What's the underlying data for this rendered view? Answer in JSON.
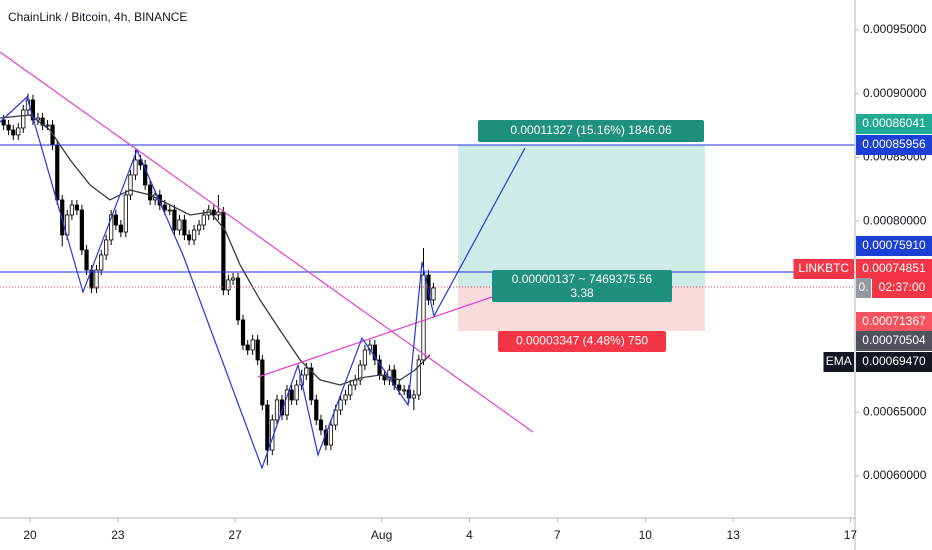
{
  "chart_data": {
    "type": "candlestick",
    "title": "ChainLink / Bitcoin, 4h, BINANCE",
    "up_color": "#ffffff",
    "down_color": "#000000",
    "x": [
      19.1,
      19.27,
      19.43,
      19.6,
      19.77,
      19.93,
      20.1,
      20.27,
      20.43,
      20.6,
      20.77,
      20.93,
      21.1,
      21.27,
      21.43,
      21.6,
      21.77,
      21.93,
      22.1,
      22.27,
      22.43,
      22.6,
      22.77,
      22.93,
      23.1,
      23.27,
      23.43,
      23.6,
      23.77,
      23.93,
      24.1,
      24.27,
      24.43,
      24.6,
      24.77,
      24.93,
      25.1,
      25.27,
      25.43,
      25.6,
      25.77,
      25.93,
      26.1,
      26.27,
      26.43,
      26.6,
      26.77,
      26.93,
      27.1,
      27.27,
      27.43,
      27.6,
      27.77,
      27.93,
      28.1,
      28.27,
      28.43,
      28.6,
      28.77,
      28.93,
      29.1,
      29.27,
      29.43,
      29.6,
      29.77,
      29.93,
      30.1,
      30.27,
      30.43,
      30.6,
      30.77,
      30.93,
      31.1,
      31.27,
      31.43,
      31.6,
      31.77,
      31.93,
      32.1,
      32.27,
      32.43,
      32.6,
      32.77,
      32.93,
      33.1,
      33.27,
      33.43,
      33.6,
      33.77
    ],
    "open": [
      0.0008794,
      0.0008754,
      0.0008715,
      0.0008676,
      0.0008731,
      0.0008872,
      0.0008951,
      0.0008794,
      0.0008809,
      0.0008754,
      0.0008754,
      0.0008597,
      0.0008166,
      0.0007891,
      0.0008048,
      0.0008126,
      0.0008087,
      0.0007773,
      0.0007616,
      0.0007475,
      0.0007616,
      0.0007734,
      0.0007852,
      0.0008048,
      0.0007969,
      0.0007914,
      0.0008205,
      0.0008362,
      0.000848,
      0.000844,
      0.0008283,
      0.0008166,
      0.0008205,
      0.0008126,
      0.0008087,
      0.0008087,
      0.000793,
      0.0008009,
      0.0007891,
      0.0007852,
      0.000793,
      0.0007969,
      0.0008048,
      0.0008087,
      0.0008048,
      0.0008071,
      0.0007459,
      0.0007538,
      0.0007553,
      0.0007224,
      0.0007027,
      0.0006988,
      0.0007067,
      0.000691,
      0.0006556,
      0.0006203,
      0.0006439,
      0.0006596,
      0.0006478,
      0.0006674,
      0.0006596,
      0.0006713,
      0.0006792,
      0.0006847,
      0.0006596,
      0.0006439,
      0.000636,
      0.0006242,
      0.0006399,
      0.0006517,
      0.0006596,
      0.0006635,
      0.0006713,
      0.0006753,
      0.000687,
      0.0006988,
      0.0007027,
      0.000691,
      0.0006792,
      0.0006753,
      0.0006831,
      0.0006713,
      0.0006674,
      0.0006674,
      0.0006611,
      0.0006635,
      0.000691,
      0.0007577,
      0.0007381
    ],
    "high": [
      0.0008834,
      0.0008794,
      0.0008755,
      0.0008771,
      0.0008912,
      0.0009,
      0.0008991,
      0.0008849,
      0.0008849,
      0.0008794,
      0.0008794,
      0.0008637,
      0.0008206,
      0.0008088,
      0.0008166,
      0.0008166,
      0.0008127,
      0.0007813,
      0.0007656,
      0.0007656,
      0.0007774,
      0.0007892,
      0.0008088,
      0.0008088,
      0.0008009,
      0.0008245,
      0.0008402,
      0.000856,
      0.000852,
      0.000848,
      0.0008323,
      0.0008245,
      0.0008245,
      0.0008166,
      0.0008127,
      0.0008127,
      0.0008049,
      0.0008049,
      0.0007931,
      0.000797,
      0.0008009,
      0.0008088,
      0.0008127,
      0.0008127,
      0.0008205,
      0.0008111,
      0.0007578,
      0.0007593,
      0.0007593,
      0.0007264,
      0.0007067,
      0.0007107,
      0.0007107,
      0.000695,
      0.0006596,
      0.0006479,
      0.0006636,
      0.0006636,
      0.0006714,
      0.0006714,
      0.0006753,
      0.0006832,
      0.0006887,
      0.0006887,
      0.0006636,
      0.0006479,
      0.00064,
      0.0006439,
      0.0006557,
      0.0006636,
      0.0006675,
      0.0006753,
      0.0006793,
      0.000691,
      0.0007028,
      0.0007067,
      0.0007067,
      0.000695,
      0.0006832,
      0.0006871,
      0.0006871,
      0.0006753,
      0.0006714,
      0.0006714,
      0.0006675,
      0.000695,
      0.0007789,
      0.0007617,
      0.0007515
    ],
    "low": [
      0.0008714,
      0.0008675,
      0.0008636,
      0.0008636,
      0.0008691,
      0.0008832,
      0.0008754,
      0.0008754,
      0.0008714,
      0.0008714,
      0.0008557,
      0.0008126,
      0.00078,
      0.0007851,
      0.0008008,
      0.0008047,
      0.0007733,
      0.0007576,
      0.0007435,
      0.0007435,
      0.0007576,
      0.0007694,
      0.0007812,
      0.0007929,
      0.0007874,
      0.0007874,
      0.0008165,
      0.0008322,
      0.00084,
      0.0008243,
      0.0008126,
      0.0008126,
      0.0008086,
      0.0008047,
      0.0008047,
      0.000789,
      0.000789,
      0.0007851,
      0.0007812,
      0.0007812,
      0.000789,
      0.0007929,
      0.0008008,
      0.0008008,
      0.0008008,
      0.0007419,
      0.0007419,
      0.0007498,
      0.0007184,
      0.0006987,
      0.0006948,
      0.0006948,
      0.000687,
      0.0006516,
      0.0006085,
      0.0006163,
      0.0006399,
      0.0006438,
      0.0006438,
      0.0006556,
      0.0006556,
      0.0006673,
      0.0006752,
      0.0006556,
      0.0006399,
      0.000632,
      0.0006202,
      0.0006202,
      0.0006359,
      0.0006477,
      0.0006556,
      0.0006595,
      0.0006673,
      0.0006713,
      0.000683,
      0.0006948,
      0.000687,
      0.0006752,
      0.0006713,
      0.0006713,
      0.0006673,
      0.0006634,
      0.0006634,
      0.0006571,
      0.0006517,
      0.0006595,
      0.000687,
      0.0007341,
      0.0007341
    ],
    "close": [
      0.0008754,
      0.0008715,
      0.0008676,
      0.0008731,
      0.0008872,
      0.0008951,
      0.0008794,
      0.0008809,
      0.0008754,
      0.0008754,
      0.0008597,
      0.0008166,
      0.0007891,
      0.0008048,
      0.0008126,
      0.0008087,
      0.0007773,
      0.0007616,
      0.0007475,
      0.0007616,
      0.0007734,
      0.0007852,
      0.0008048,
      0.0007969,
      0.0007914,
      0.0008205,
      0.0008362,
      0.000848,
      0.000844,
      0.0008283,
      0.0008166,
      0.0008205,
      0.0008126,
      0.0008087,
      0.0008087,
      0.000793,
      0.0008009,
      0.0007891,
      0.0007852,
      0.000793,
      0.0007969,
      0.0008048,
      0.0008087,
      0.0008048,
      0.0008071,
      0.0007459,
      0.0007538,
      0.0007553,
      0.0007224,
      0.0007027,
      0.0006988,
      0.0007067,
      0.000691,
      0.0006556,
      0.0006203,
      0.0006439,
      0.0006596,
      0.0006478,
      0.0006674,
      0.0006596,
      0.0006713,
      0.0006792,
      0.0006847,
      0.0006596,
      0.0006439,
      0.000636,
      0.0006242,
      0.0006399,
      0.0006517,
      0.0006596,
      0.0006635,
      0.0006713,
      0.0006753,
      0.000687,
      0.0006988,
      0.0007027,
      0.000691,
      0.0006792,
      0.0006753,
      0.0006831,
      0.0006713,
      0.0006674,
      0.0006674,
      0.0006611,
      0.0006635,
      0.000691,
      0.0007577,
      0.0007381,
      0.0007475
    ],
    "ema": {
      "name": "EMA",
      "color": "#363a45",
      "x": [
        18.98,
        20.0,
        20.68,
        21.37,
        22.05,
        22.73,
        23.41,
        24.1,
        24.78,
        25.46,
        26.14,
        26.66,
        27.17,
        27.85,
        28.53,
        29.22,
        29.9,
        30.58,
        31.26,
        31.95,
        32.63,
        33.14,
        33.65
      ],
      "values": [
        0.0008809,
        0.0008833,
        0.0008715,
        0.000848,
        0.0008283,
        0.0008166,
        0.0008244,
        0.0008205,
        0.0008126,
        0.0008048,
        0.0008071,
        0.000793,
        0.0007655,
        0.0007381,
        0.0007145,
        0.000691,
        0.0006753,
        0.0006713,
        0.0006768,
        0.0006792,
        0.0006753,
        0.0006831,
        0.0006949
      ]
    },
    "xlim": [
      18.976,
      48.157
    ],
    "xticks": [
      20,
      23,
      27,
      {
        "value": 32,
        "label": "Aug"
      },
      {
        "value": 35,
        "label": "4"
      },
      {
        "value": 38,
        "label": "7"
      },
      {
        "value": 41,
        "label": "10"
      },
      {
        "value": 44,
        "label": "13"
      },
      {
        "value": 48,
        "label": "17"
      }
    ],
    "ylim": [
      0.00056692,
      0.00097355
    ],
    "yticks": [
      {
        "value": 0.0006,
        "label": "0.00060000"
      },
      {
        "value": 0.00065,
        "label": "0.00065000"
      },
      {
        "value": 0.0008,
        "label": "0.00080000"
      },
      {
        "value": 0.00085,
        "label": "0.00085000"
      },
      {
        "value": 0.0009,
        "label": "0.00090000"
      },
      {
        "value": 0.00095,
        "label": "0.00095000"
      }
    ],
    "axis_labels": [
      {
        "text": "0.00086041",
        "bg": "#22ab94"
      },
      {
        "text": "0.00085956",
        "bg": "#1c3fd6"
      },
      {
        "text": "0.00075910",
        "bg": "#1c3fd6"
      },
      {
        "name": "LINKBTC",
        "text": "0.00074851",
        "bg": "#f23645"
      },
      {
        "text": "0.",
        "bg": "#9598a1"
      },
      {
        "text": "02:37:00",
        "bg": "#f23645"
      },
      {
        "text": "0.00071367",
        "bg": "#f7525f"
      },
      {
        "text": "0.00070504",
        "bg": "#50535e"
      },
      {
        "name": "EMA",
        "text": "0.00069470",
        "bg": "#131722"
      }
    ],
    "position": {
      "target": "0.00011327 (15.16%) 1846.06",
      "middle": "0.00000137 ~ 7469375.56",
      "ratio": "3.38",
      "stop": "0.00003347 (4.48%) 750"
    }
  }
}
